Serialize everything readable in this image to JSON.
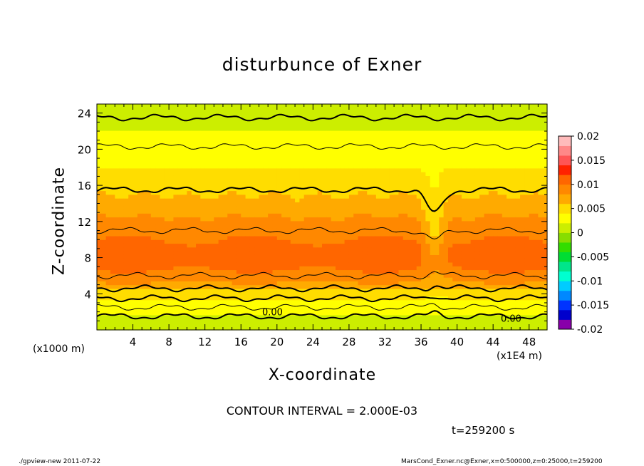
{
  "title": "disturbunce of Exner",
  "contour_interval": "CONTOUR INTERVAL = 2.000E-03",
  "time_label": "t=259200 s",
  "footer_left": "./gpview-new  2011-07-22",
  "footer_right": "MarsCond_Exner.nc@Exner,x=0:500000,z=0:25000,t=259200",
  "colors": {
    "scale": [
      "#8800aa",
      "#0000cc",
      "#0033ff",
      "#0088ff",
      "#00ccff",
      "#00ffd0",
      "#00e68a",
      "#00dd33",
      "#33dd00",
      "#88dd00",
      "#ccee00",
      "#ffff00",
      "#ffdd00",
      "#ffaa00",
      "#ff8800",
      "#ff6600",
      "#ff2200",
      "#ff5555",
      "#ff8888",
      "#ffbbbb"
    ]
  },
  "chart_data": {
    "type": "heatmap",
    "title": "disturbunce of Exner",
    "xlabel": "X-coordinate",
    "ylabel": "Z-coordinate",
    "x_unit_label": "(x1E4 m)",
    "y_unit_label": "(x1000 m)",
    "xlim": [
      0,
      50
    ],
    "ylim": [
      0,
      25
    ],
    "xticks": [
      "4",
      "8",
      "12",
      "16",
      "20",
      "24",
      "28",
      "32",
      "36",
      "40",
      "44",
      "48"
    ],
    "yticks": [
      "4",
      "8",
      "12",
      "16",
      "20",
      "24"
    ],
    "colorbar": {
      "min": -0.02,
      "max": 0.02,
      "interval": 0.002,
      "tick_labels": [
        "-0.02",
        "-0.015",
        "-0.01",
        "-0.005",
        "0",
        "0.005",
        "0.01",
        "0.015",
        "0.02"
      ]
    },
    "contour_labels": [
      "0.00",
      "0.00"
    ],
    "vertical_profile": {
      "z": [
        0,
        1,
        2,
        3,
        4,
        4.5,
        5,
        6,
        7,
        8,
        9,
        10,
        11,
        12,
        13,
        14,
        15,
        16,
        18,
        20,
        22,
        24,
        25
      ],
      "value": [
        0.0005,
        0.0015,
        0.0025,
        0.0035,
        0.0048,
        0.006,
        0.0075,
        0.009,
        0.0105,
        0.011,
        0.0108,
        0.01,
        0.009,
        0.0085,
        0.0075,
        0.0065,
        0.006,
        0.005,
        0.004,
        0.003,
        0.002,
        0.0012,
        0.0008
      ]
    },
    "feature": {
      "x_center": 37.5,
      "z_top": 13,
      "description_value": 0.0
    },
    "contour_levels_shown": [
      0.0,
      0.002,
      0.004,
      0.006,
      0.008,
      0.01
    ]
  }
}
